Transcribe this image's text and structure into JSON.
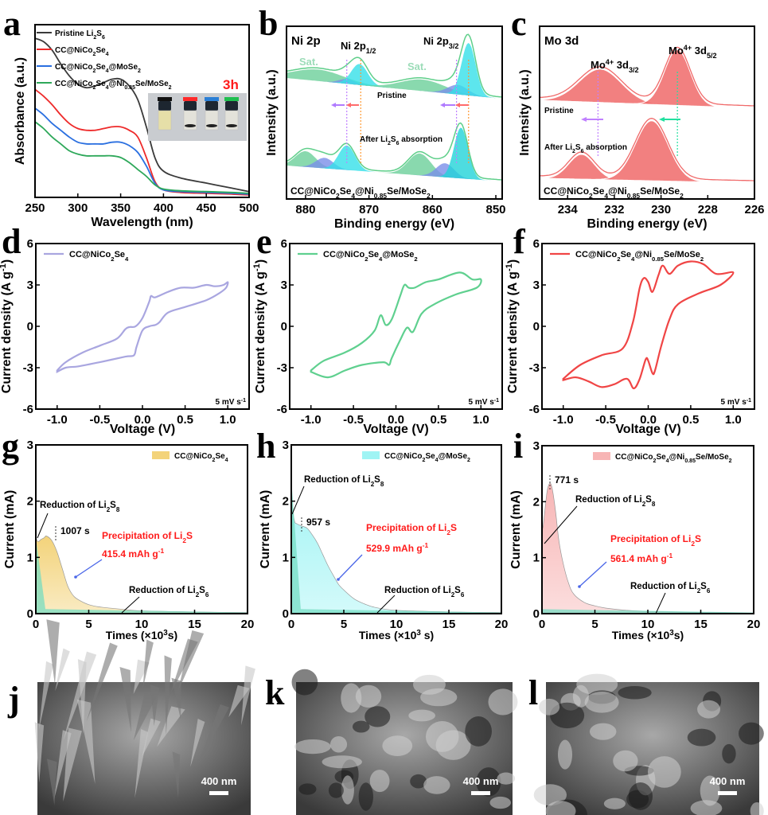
{
  "panel_labels": [
    "a",
    "b",
    "c",
    "d",
    "e",
    "f",
    "g",
    "h",
    "i",
    "j",
    "k",
    "l"
  ],
  "chart_data": [
    {
      "id": "a",
      "type": "line",
      "xlabel": "Wavelength (nm)",
      "ylabel": "Absorbance (a.u.)",
      "xlim": [
        250,
        500
      ],
      "xticks": [
        "250",
        "300",
        "350",
        "400",
        "450",
        "500"
      ],
      "inset_label": "3h",
      "inset_caps": [
        "#111111",
        "#ff2a2a",
        "#2a7fd6",
        "#1fbf4f"
      ],
      "series": [
        {
          "name": "Pristine Li2S6",
          "color": "#3a3a3a",
          "x": [
            250,
            260,
            270,
            280,
            290,
            300,
            310,
            320,
            330,
            340,
            350,
            360,
            370,
            380,
            390,
            400,
            420,
            450,
            480,
            500
          ],
          "y": [
            0.92,
            0.9,
            0.85,
            0.77,
            0.7,
            0.65,
            0.63,
            0.64,
            0.66,
            0.68,
            0.68,
            0.64,
            0.56,
            0.4,
            0.22,
            0.14,
            0.1,
            0.07,
            0.04,
            0.02
          ]
        },
        {
          "name": "CC@NiCo2Se4",
          "color": "#ee2a2a",
          "x": [
            250,
            260,
            270,
            280,
            290,
            300,
            310,
            320,
            330,
            340,
            350,
            360,
            370,
            380,
            390,
            400,
            420,
            450,
            480,
            500
          ],
          "y": [
            0.62,
            0.58,
            0.53,
            0.47,
            0.42,
            0.39,
            0.38,
            0.38,
            0.39,
            0.4,
            0.4,
            0.38,
            0.34,
            0.22,
            0.08,
            0.03,
            0.015,
            0.01,
            0.005,
            0.0
          ]
        },
        {
          "name": "CC@NiCo2Se4@MoSe2",
          "color": "#2a6fe0",
          "x": [
            250,
            260,
            270,
            280,
            290,
            300,
            310,
            320,
            330,
            340,
            350,
            360,
            370,
            380,
            390,
            400,
            420,
            450,
            480,
            500
          ],
          "y": [
            0.51,
            0.47,
            0.42,
            0.38,
            0.34,
            0.31,
            0.3,
            0.3,
            0.3,
            0.31,
            0.31,
            0.29,
            0.25,
            0.17,
            0.07,
            0.03,
            0.02,
            0.015,
            0.01,
            0.005
          ]
        },
        {
          "name": "CC@NiCo2Se4@Ni0.85Se/MoSe2",
          "color": "#2ea85a",
          "x": [
            250,
            260,
            270,
            280,
            290,
            300,
            310,
            320,
            330,
            340,
            350,
            360,
            370,
            380,
            390,
            400,
            420,
            450,
            480,
            500
          ],
          "y": [
            0.43,
            0.39,
            0.34,
            0.3,
            0.26,
            0.24,
            0.23,
            0.23,
            0.23,
            0.23,
            0.22,
            0.19,
            0.15,
            0.11,
            0.06,
            0.035,
            0.025,
            0.02,
            0.015,
            0.01
          ]
        }
      ]
    },
    {
      "id": "b",
      "type": "area",
      "title": "Ni 2p",
      "xlabel": "Binding energy (eV)",
      "ylabel": "Intensity (a.u.)",
      "xlim": [
        883,
        849
      ],
      "xticks": [
        "880",
        "870",
        "860",
        "850"
      ],
      "peak_labels": [
        "Ni 2p1/2",
        "Ni 2p3/2",
        "Sat.",
        "Sat."
      ],
      "curve_labels": [
        "Pristine",
        "After Li2S6 absorption"
      ],
      "sample": "CC@NiCo2Se4@Ni0.85Se/MoSe2",
      "pristine_peaks": [
        {
          "center": 878,
          "height": 0.12,
          "width": 4,
          "color": "#6ccf9a"
        },
        {
          "center": 873.5,
          "height": 0.05,
          "width": 1.2,
          "color": "#7a8ee8"
        },
        {
          "center": 871.5,
          "height": 0.22,
          "width": 1.3,
          "color": "#35e0e8"
        },
        {
          "center": 861.5,
          "height": 0.12,
          "width": 3.5,
          "color": "#6ccf9a"
        },
        {
          "center": 856,
          "height": 0.1,
          "width": 1.6,
          "color": "#7a8ee8"
        },
        {
          "center": 854.3,
          "height": 0.55,
          "width": 1.1,
          "color": "#35e0e8"
        }
      ],
      "after_peaks": [
        {
          "center": 880,
          "height": 0.18,
          "width": 1.6,
          "color": "#6ccf9a"
        },
        {
          "center": 877,
          "height": 0.12,
          "width": 1.4,
          "color": "#7a8ee8"
        },
        {
          "center": 873.5,
          "height": 0.28,
          "width": 1.3,
          "color": "#35e0e8"
        },
        {
          "center": 862,
          "height": 0.25,
          "width": 1.8,
          "color": "#6ccf9a"
        },
        {
          "center": 858,
          "height": 0.16,
          "width": 1.4,
          "color": "#7a8ee8"
        },
        {
          "center": 855.5,
          "height": 0.58,
          "width": 1.1,
          "color": "#22d3d8"
        }
      ],
      "markers": [
        873.5,
        871.3,
        856.2,
        854.3
      ]
    },
    {
      "id": "c",
      "type": "area",
      "title": "Mo 3d",
      "xlabel": "Binding energy (eV)",
      "ylabel": "Intensity (a.u.)",
      "xlim": [
        235.2,
        226
      ],
      "xticks": [
        "234",
        "232",
        "230",
        "228",
        "226"
      ],
      "peak_labels": [
        "Mo4+ 3d3/2",
        "Mo4+ 3d5/2"
      ],
      "curve_labels": [
        "Pristine",
        "After Li2S6 absorption"
      ],
      "sample": "CC@NiCo2Se4@Ni0.85Se/MoSe2",
      "pristine_peaks": [
        {
          "center": 232.6,
          "height": 0.3,
          "width": 0.9
        },
        {
          "center": 229.3,
          "height": 0.5,
          "width": 0.55
        }
      ],
      "after_peaks": [
        {
          "center": 233.4,
          "height": 0.24,
          "width": 0.55
        },
        {
          "center": 230.4,
          "height": 0.58,
          "width": 0.7
        }
      ],
      "markers": [
        232.7,
        229.3
      ],
      "color": "#f06a6a"
    },
    {
      "id": "d",
      "type": "line",
      "xlabel": "Voltage (V)",
      "ylabel": "Current density (A g-1)",
      "xlim": [
        -1.25,
        1.25
      ],
      "ylim": [
        -6,
        6
      ],
      "xticks": [
        "-1.0",
        "-0.5",
        "0.0",
        "0.5",
        "1.0"
      ],
      "yticks": [
        "-6",
        "-3",
        "0",
        "3",
        "6"
      ],
      "legend": "CC@NiCo2Se4",
      "color": "#a9a6e0",
      "scan_rate": "5 mV s-1",
      "x": [
        -1.0,
        -0.9,
        -0.7,
        -0.5,
        -0.3,
        -0.2,
        -0.15,
        -0.08,
        0.0,
        0.08,
        0.1,
        0.15,
        0.3,
        0.45,
        0.6,
        0.75,
        0.85,
        0.95,
        1.0,
        0.98,
        0.9,
        0.75,
        0.5,
        0.3,
        0.2,
        0.15,
        0.08,
        0.0,
        -0.07,
        -0.1,
        -0.2,
        -0.5,
        -0.75,
        -0.9,
        -1.0
      ],
      "y": [
        -3.2,
        -2.6,
        -1.9,
        -1.4,
        -0.9,
        -0.2,
        -0.05,
        0.0,
        0.6,
        1.8,
        2.2,
        2.1,
        2.5,
        2.8,
        2.8,
        3.0,
        2.9,
        3.0,
        3.2,
        2.8,
        2.4,
        1.9,
        1.4,
        1.0,
        0.3,
        0.1,
        0.0,
        -0.3,
        -1.5,
        -2.1,
        -2.2,
        -2.6,
        -2.9,
        -3.0,
        -3.3
      ]
    },
    {
      "id": "e",
      "type": "line",
      "xlabel": "Voltage (V)",
      "ylabel": "Current density (A g-1)",
      "xlim": [
        -1.25,
        1.25
      ],
      "ylim": [
        -6,
        6
      ],
      "xticks": [
        "-1.0",
        "-0.5",
        "0.0",
        "0.5",
        "1.0"
      ],
      "yticks": [
        "-6",
        "-3",
        "0",
        "3",
        "6"
      ],
      "legend": "CC@NiCo2Se4@MoSe2",
      "color": "#5fd08f",
      "scan_rate": "5 mV s-1",
      "x": [
        -1.0,
        -0.85,
        -0.6,
        -0.4,
        -0.25,
        -0.18,
        -0.12,
        -0.05,
        0.05,
        0.1,
        0.15,
        0.22,
        0.35,
        0.5,
        0.75,
        0.9,
        1.0,
        0.95,
        0.7,
        0.45,
        0.3,
        0.2,
        0.13,
        0.05,
        -0.05,
        -0.08,
        -0.15,
        -0.4,
        -0.6,
        -0.8,
        -1.0
      ],
      "y": [
        -3.2,
        -2.5,
        -1.9,
        -1.2,
        -0.3,
        0.8,
        0.1,
        0.5,
        2.2,
        3.0,
        2.8,
        2.8,
        3.2,
        3.4,
        3.9,
        3.4,
        3.4,
        2.8,
        2.3,
        1.6,
        0.9,
        -0.4,
        -0.1,
        -1.0,
        -2.3,
        -2.8,
        -2.6,
        -2.8,
        -3.2,
        -3.7,
        -3.3
      ]
    },
    {
      "id": "f",
      "type": "line",
      "xlabel": "Voltage (V)",
      "ylabel": "Current density (A g-1)",
      "xlim": [
        -1.25,
        1.25
      ],
      "ylim": [
        -6,
        6
      ],
      "xticks": [
        "-1.0",
        "-0.5",
        "0.0",
        "0.5",
        "1.0"
      ],
      "yticks": [
        "-6",
        "-3",
        "0",
        "3",
        "6"
      ],
      "legend": "CC@NiCo2Se4@Ni0.85Se/MoSe2",
      "color": "#f04545",
      "scan_rate": "5 mV s-1",
      "x": [
        -1.0,
        -0.8,
        -0.55,
        -0.3,
        -0.18,
        -0.1,
        -0.05,
        0.0,
        0.05,
        0.12,
        0.17,
        0.25,
        0.35,
        0.5,
        0.65,
        0.8,
        1.0,
        0.85,
        0.6,
        0.35,
        0.25,
        0.15,
        0.08,
        0.05,
        0.0,
        -0.03,
        -0.1,
        -0.17,
        -0.25,
        -0.4,
        -0.55,
        -0.7,
        -0.85,
        -1.0
      ],
      "y": [
        -3.8,
        -2.8,
        -2.1,
        -1.6,
        0.3,
        2.8,
        3.5,
        3.2,
        2.5,
        3.7,
        4.4,
        3.8,
        4.4,
        4.7,
        4.5,
        3.8,
        3.9,
        3.0,
        2.4,
        1.6,
        0.5,
        -1.5,
        -3.2,
        -3.4,
        -2.5,
        -2.4,
        -3.8,
        -4.5,
        -3.8,
        -4.2,
        -4.4,
        -4.0,
        -3.7,
        -3.9
      ]
    },
    {
      "id": "g",
      "type": "area",
      "xlabel": "Times (×10³s)",
      "ylabel": "Current (mA)",
      "xlim": [
        0,
        20
      ],
      "ylim": [
        0,
        3
      ],
      "xticks": [
        "0",
        "5",
        "10",
        "15",
        "20"
      ],
      "yticks": [
        "0",
        "1",
        "2",
        "3"
      ],
      "legend": "CC@NiCo2Se4",
      "color": "#f3d37a",
      "base_color": "#6fdcc0",
      "peak_time": "1007 s",
      "annotations": [
        "Reduction of Li2S8",
        "Precipitation of Li2S",
        "415.4 mAh g-1",
        "Reduction of Li2S6"
      ],
      "x": [
        0,
        0.2,
        0.5,
        0.8,
        1.0,
        1.5,
        2.0,
        2.5,
        3.0,
        3.5,
        4,
        5,
        6,
        8,
        10,
        15,
        20
      ],
      "y": [
        1.35,
        1.28,
        1.32,
        1.35,
        1.38,
        1.3,
        1.1,
        0.8,
        0.5,
        0.33,
        0.25,
        0.16,
        0.12,
        0.08,
        0.05,
        0.03,
        0.02
      ]
    },
    {
      "id": "h",
      "type": "area",
      "xlabel": "Times (×10³ s)",
      "ylabel": "Current (mA)",
      "xlim": [
        0,
        20
      ],
      "ylim": [
        0,
        3
      ],
      "xticks": [
        "0",
        "5",
        "10",
        "15",
        "20"
      ],
      "yticks": [
        "0",
        "1",
        "2",
        "3"
      ],
      "legend": "CC@NiCo2Se4@MoSe2",
      "color": "#9ff4f4",
      "base_color": "#6fdcc0",
      "peak_time": "957 s",
      "annotations": [
        "Reduction of Li2S8",
        "Precipitation of Li2S",
        "529.9 mAh g-1",
        "Reduction of Li2S6"
      ],
      "x": [
        0,
        0.1,
        0.3,
        0.5,
        0.96,
        1.5,
        2.0,
        2.5,
        3,
        3.5,
        4,
        4.5,
        5,
        6,
        7,
        8,
        10,
        15,
        20
      ],
      "y": [
        2.4,
        1.9,
        1.65,
        1.6,
        1.56,
        1.52,
        1.4,
        1.25,
        1.05,
        0.85,
        0.68,
        0.52,
        0.42,
        0.26,
        0.17,
        0.11,
        0.06,
        0.03,
        0.02
      ]
    },
    {
      "id": "i",
      "type": "area",
      "xlabel": "Times (×10³s)",
      "ylabel": "Current (mA)",
      "xlim": [
        0,
        20
      ],
      "ylim": [
        0,
        3
      ],
      "xticks": [
        "0",
        "5",
        "10",
        "15",
        "20"
      ],
      "yticks": [
        "0",
        "1",
        "2",
        "3"
      ],
      "legend": "CC@NiCo2Se4@Ni0.85Se/MoSe2",
      "color": "#f7b5b5",
      "base_color": "#6fdcc0",
      "peak_time": "771 s",
      "annotations": [
        "Reduction of Li2S8",
        "Precipitation of Li2S",
        "561.4 mAh g-1",
        "Reduction of Li2S6"
      ],
      "x": [
        0,
        0.1,
        0.25,
        0.5,
        0.77,
        1.0,
        1.3,
        1.6,
        2.0,
        2.5,
        3,
        4,
        5,
        6,
        8,
        10,
        15,
        20
      ],
      "y": [
        1.5,
        1.55,
        1.8,
        2.2,
        2.33,
        2.2,
        1.8,
        1.3,
        0.9,
        0.55,
        0.35,
        0.2,
        0.14,
        0.1,
        0.06,
        0.04,
        0.02,
        0.01
      ]
    }
  ],
  "sem": [
    {
      "id": "j",
      "scale_bar": "400 nm"
    },
    {
      "id": "k",
      "scale_bar": "400 nm"
    },
    {
      "id": "l",
      "scale_bar": "400 nm"
    }
  ]
}
